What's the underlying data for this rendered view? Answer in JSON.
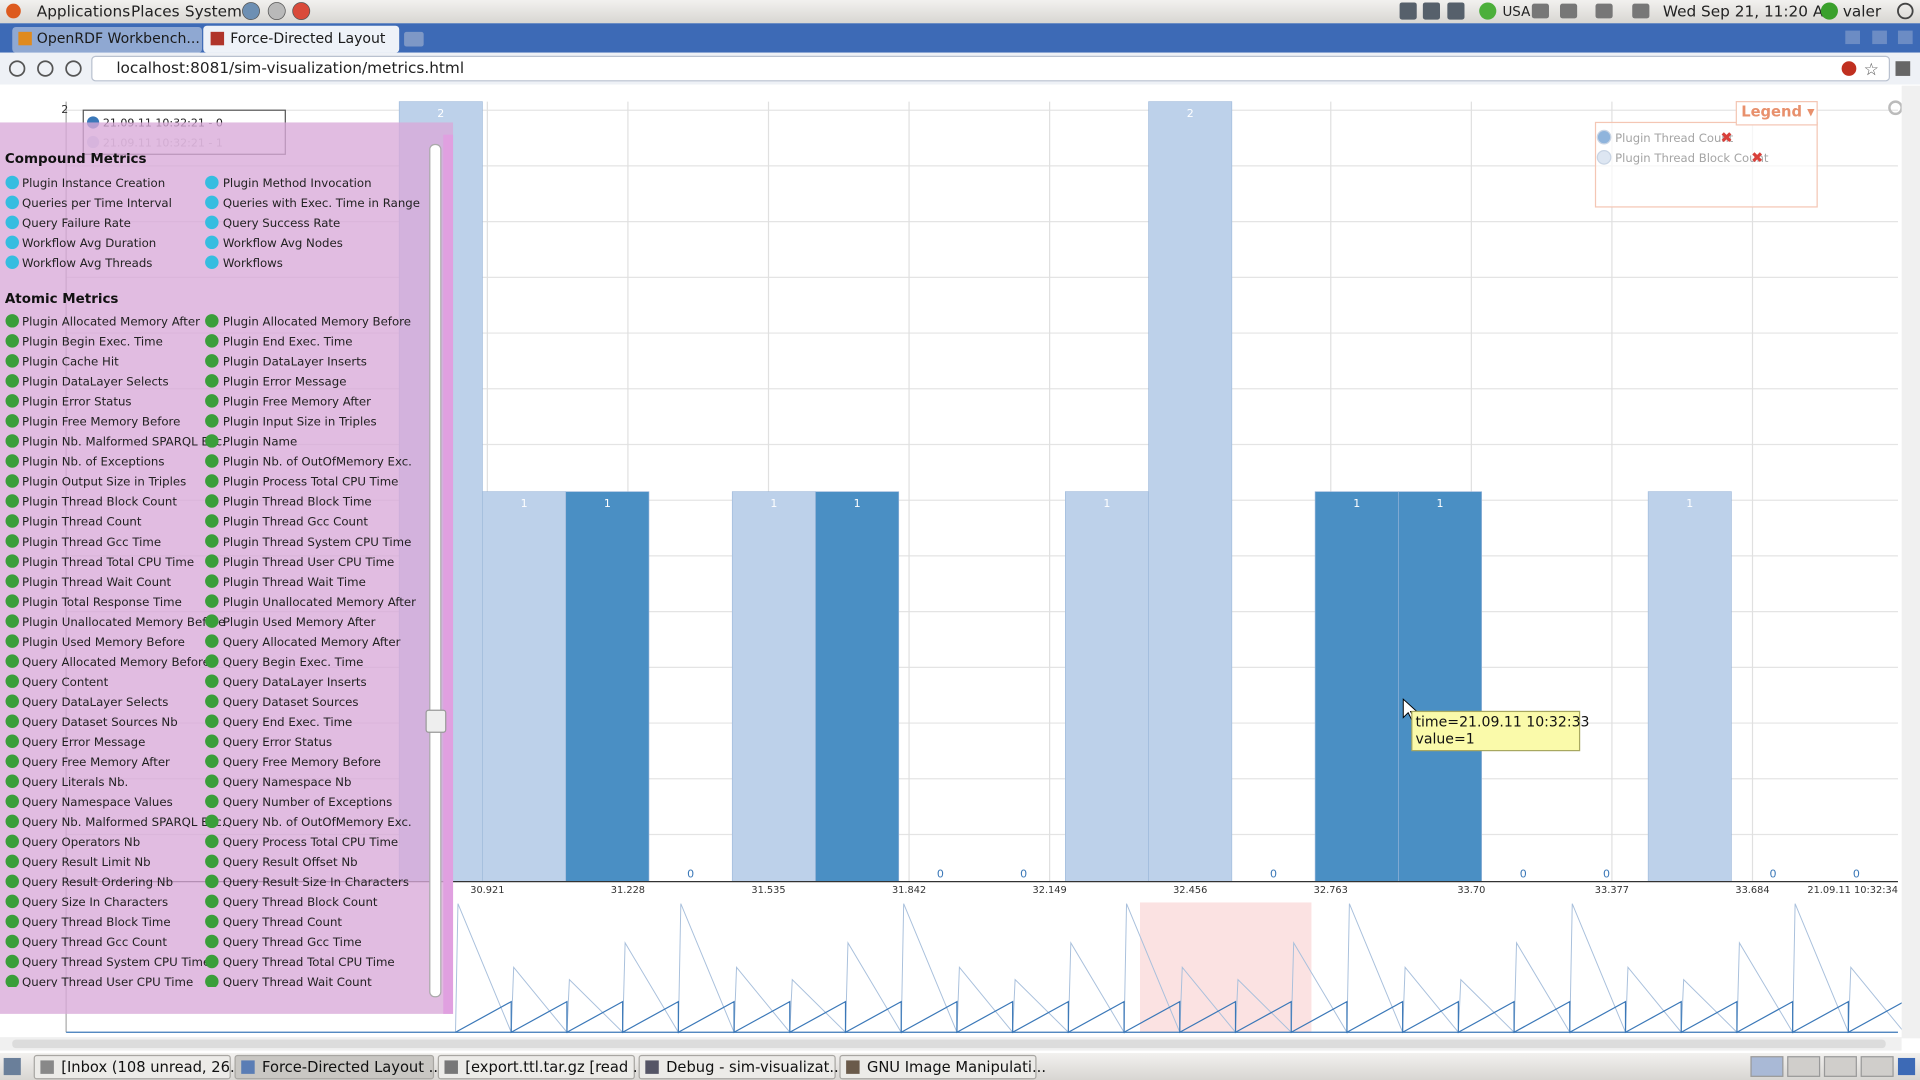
{
  "top_panel": {
    "menus": [
      "Applications",
      "Places",
      "System"
    ],
    "keyboard": "USA",
    "clock": "Wed Sep 21, 11:20 AM",
    "user": "valer"
  },
  "browser": {
    "tabs": [
      "OpenRDF Workbench...",
      "Force-Directed Layout"
    ],
    "url": "localhost:8081/sim-visualization/metrics.html"
  },
  "mini_chart": {
    "axis_label": "2",
    "legend": [
      "21.09.11 10:32:21 - 0",
      "21.09.11 10:32:21 - 1"
    ]
  },
  "metrics_panel": {
    "compound": {
      "title": "Compound Metrics",
      "left": [
        "Plugin Instance Creation",
        "Queries per Time Interval",
        "Query Failure Rate",
        "Workflow Avg Duration",
        "Workflow Avg Threads"
      ],
      "right": [
        "Plugin Method Invocation",
        "Queries with Exec. Time in Range",
        "Query Success Rate",
        "Workflow Avg Nodes",
        "Workflows"
      ]
    },
    "atomic": {
      "title": "Atomic Metrics",
      "left": [
        "Plugin Allocated Memory After",
        "Plugin Begin Exec. Time",
        "Plugin Cache Hit",
        "Plugin DataLayer Selects",
        "Plugin Error Status",
        "Plugin Free Memory Before",
        "Plugin Nb. Malformed SPARQL Exc.",
        "Plugin Nb. of Exceptions",
        "Plugin Output Size in Triples",
        "Plugin Thread Block Count",
        "Plugin Thread Count",
        "Plugin Thread Gcc Time",
        "Plugin Thread Total CPU Time",
        "Plugin Thread Wait Count",
        "Plugin Total Response Time",
        "Plugin Unallocated Memory Before",
        "Plugin Used Memory Before",
        "Query Allocated Memory Before",
        "Query Content",
        "Query DataLayer Selects",
        "Query Dataset Sources Nb",
        "Query Error Message",
        "Query Free Memory After",
        "Query Literals Nb.",
        "Query Namespace Values",
        "Query Nb. Malformed SPARQL Exc.",
        "Query Operators Nb",
        "Query Result Limit Nb",
        "Query Result Ordering Nb",
        "Query Size In Characters",
        "Query Thread Block Time",
        "Query Thread Gcc Count",
        "Query Thread System CPU Time",
        "Query Thread User CPU Time"
      ],
      "right": [
        "Plugin Allocated Memory Before",
        "Plugin End Exec. Time",
        "Plugin DataLayer Inserts",
        "Plugin Error Message",
        "Plugin Free Memory After",
        "Plugin Input Size in Triples",
        "Plugin Name",
        "Plugin Nb. of OutOfMemory Exc.",
        "Plugin Process Total CPU Time",
        "Plugin Thread Block Time",
        "Plugin Thread Gcc Count",
        "Plugin Thread System CPU Time",
        "Plugin Thread User CPU Time",
        "Plugin Thread Wait Time",
        "Plugin Unallocated Memory After",
        "Plugin Used Memory After",
        "Query Allocated Memory After",
        "Query Begin Exec. Time",
        "Query DataLayer Inserts",
        "Query Dataset Sources",
        "Query End Exec. Time",
        "Query Error Status",
        "Query Free Memory Before",
        "Query Namespace Nb",
        "Query Number of Exceptions",
        "Query Nb. of OutOfMemory Exc.",
        "Query Process Total CPU Time",
        "Query Result Offset Nb",
        "Query Result Size In Characters",
        "Query Thread Block Count",
        "Query Thread Count",
        "Query Thread Gcc Time",
        "Query Thread Total CPU Time",
        "Query Thread Wait Count"
      ]
    }
  },
  "chart": {
    "values": [
      2,
      1,
      1,
      0,
      1,
      1,
      0,
      0,
      1,
      2,
      0,
      1,
      1,
      0,
      0,
      1,
      0,
      0
    ],
    "colors": [
      "#bdd1ea",
      "#bdd1ea",
      "#4a8fc4",
      "#bdd1ea",
      "#bdd1ea",
      "#4a8fc4",
      "#bdd1ea",
      "#bdd1ea",
      "#bdd1ea",
      "#bdd1ea",
      "#bdd1ea",
      "#4a8fc4",
      "#4a8fc4",
      "#bdd1ea",
      "#bdd1ea",
      "#bdd1ea",
      "#bdd1ea",
      "#bdd1ea"
    ],
    "ylim": [
      0,
      2
    ],
    "xticks": [
      "30.921",
      "31.228",
      "31.535",
      "31.842",
      "32.149",
      "32.456",
      "32.763",
      "33.70",
      "33.377",
      "33.684",
      "21.09.11 10:32:34"
    ],
    "legend": {
      "title": "Legend ▾",
      "series": [
        {
          "name": "Plugin Thread Count",
          "color": "#8fb4dc"
        },
        {
          "name": "Plugin Thread Block Count",
          "color": "#dde6f2"
        }
      ]
    },
    "tooltip": {
      "time": "time=21.09.11 10:32:33",
      "value": "value=1"
    }
  },
  "taskbar": [
    "[Inbox (108 unread, 26...",
    "Force-Directed Layout ...",
    "[export.ttl.tar.gz [read ...",
    "Debug - sim-visualizat...",
    "GNU Image Manipulati..."
  ]
}
